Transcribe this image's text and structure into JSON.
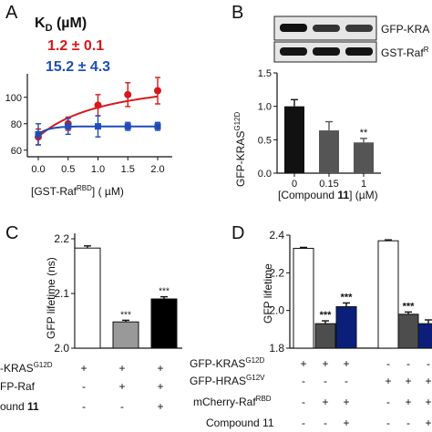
{
  "panels": {
    "a": "A",
    "b": "B",
    "c": "C",
    "d": "D"
  },
  "chart_data": [
    {
      "panel": "A",
      "type": "line",
      "title": "",
      "xlabel": "[GST-Raf",
      "xlabel_sup": "RBD",
      "xlabel_tail": "] ( µM)",
      "ylabel": "",
      "xlim": [
        0,
        2
      ],
      "ylim": [
        55,
        115
      ],
      "x_ticks": [
        "0.0",
        "0.5",
        "1.0",
        "1.5",
        "2.0"
      ],
      "y_ticks": [
        "60",
        "80",
        "100"
      ],
      "annotations": {
        "kd_label": "K",
        "kd_sub": "D",
        "kd_unit": " (µM)",
        "red_value": "1.2 ± 0.1",
        "blue_value": "15.2 ± 4.3"
      },
      "series": [
        {
          "color": "#d7191c",
          "x": [
            0,
            0.5,
            1.0,
            1.5,
            2.0
          ],
          "values": [
            70,
            80,
            94,
            102,
            105
          ],
          "err": [
            6,
            5,
            8,
            9,
            10
          ]
        },
        {
          "color": "#1f4db8",
          "x": [
            0,
            0.5,
            1.0,
            1.5,
            2.0
          ],
          "values": [
            72,
            78,
            78,
            78,
            78
          ],
          "err": [
            8,
            6,
            8,
            3,
            3
          ]
        }
      ]
    },
    {
      "panel": "B",
      "type": "bar",
      "title": "",
      "blot_labels": [
        "GFP-KRA",
        "GST-Raf"
      ],
      "blot_sup": "R",
      "ylabel": "GFP-KRAS",
      "ylabel_sup": "G12D",
      "xlabel": "[Compound ",
      "xlabel_bold": "11",
      "xlabel_tail": "] (µM)",
      "categories": [
        "0",
        "0.15",
        "1"
      ],
      "values": [
        1.0,
        0.64,
        0.46
      ],
      "err": [
        0.1,
        0.13,
        0.06
      ],
      "colors": [
        "#111111",
        "#555555",
        "#555555"
      ],
      "sig": [
        "",
        "",
        "**"
      ],
      "ylim": [
        0,
        1.5
      ],
      "y_ticks": [
        "0.0",
        "0.5",
        "1.0",
        "1.5"
      ]
    },
    {
      "panel": "C",
      "type": "bar",
      "title": "",
      "ylabel": "GFP lifetime (ns)",
      "ylim": [
        2.0,
        2.2
      ],
      "y_ticks": [
        "2.0",
        "2.1",
        "2.2"
      ],
      "categories": [
        "1",
        "2",
        "3"
      ],
      "values": [
        2.183,
        2.048,
        2.09
      ],
      "err": [
        0.004,
        0.003,
        0.004
      ],
      "colors": [
        "#ffffff",
        "#999999",
        "#000000"
      ],
      "sig": [
        "",
        "***",
        "***"
      ],
      "row_labels": [
        {
          "text": "-KRAS",
          "sup": "G12D",
          "signs": [
            "+",
            "+",
            "+"
          ]
        },
        {
          "text": "FP-Raf",
          "sup": "",
          "signs": [
            "-",
            "+",
            "+"
          ]
        },
        {
          "text": "ound ",
          "bold": "11",
          "signs": [
            "-",
            "-",
            "+"
          ]
        }
      ]
    },
    {
      "panel": "D",
      "type": "bar",
      "title": "",
      "ylabel": "GFP lifetime",
      "ylim": [
        1.8,
        2.4
      ],
      "y_ticks": [
        "1.8",
        "2.0",
        "2.2",
        "2.4"
      ],
      "categories": [
        "1",
        "2",
        "3",
        "4",
        "5",
        "6"
      ],
      "values": [
        2.33,
        1.93,
        2.02,
        2.37,
        1.98,
        1.93
      ],
      "err": [
        0.005,
        0.015,
        0.02,
        0.005,
        0.012,
        0.02
      ],
      "colors": [
        "#ffffff",
        "#4d4d4d",
        "#0b1f7a",
        "#ffffff",
        "#4d4d4d",
        "#0b1f7a"
      ],
      "sig": [
        "",
        "***",
        "***",
        "",
        "***",
        ""
      ],
      "row_labels": [
        {
          "text": "GFP-KRAS",
          "sup": "G12D",
          "signs": [
            "+",
            "+",
            "+",
            "-",
            "-",
            "-"
          ]
        },
        {
          "text": "GFP-HRAS",
          "sup": "G12V",
          "signs": [
            "-",
            "-",
            "-",
            "+",
            "+",
            "+"
          ]
        },
        {
          "text": "mCherry-Raf",
          "sup": "RBD",
          "signs": [
            "-",
            "+",
            "+",
            "-",
            "+",
            "+"
          ]
        },
        {
          "text": "Compound 11",
          "sup": "",
          "signs": [
            "-",
            "-",
            "+",
            "-",
            "-",
            "+"
          ]
        }
      ]
    }
  ]
}
